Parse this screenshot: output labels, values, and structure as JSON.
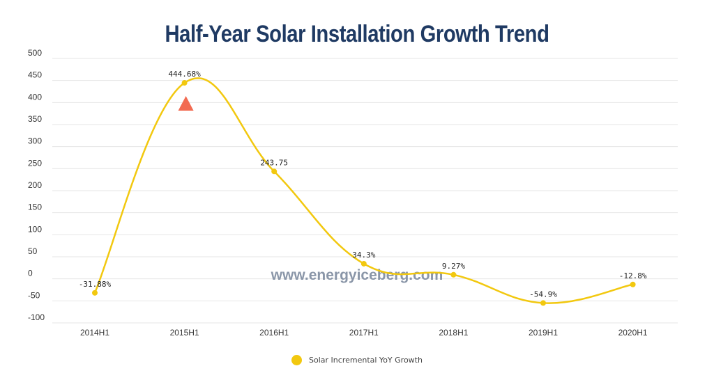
{
  "title": "Half-Year Solar Installation Growth Trend",
  "watermark": "www.energyiceberg.com",
  "colors": {
    "line": "#f2c80f",
    "marker": "#f2c80f",
    "arrow": "#f26b52",
    "title": "#1f3a63",
    "grid": "#e6e6e6"
  },
  "chart_data": {
    "type": "line",
    "title": "Half-Year Solar Installation Growth Trend",
    "categories": [
      "2014H1",
      "2015H1",
      "2016H1",
      "2017H1",
      "2018H1",
      "2019H1",
      "2020H1"
    ],
    "series": [
      {
        "name": "Solar Incremental YoY Growth",
        "values": [
          -31.88,
          444.68,
          243.75,
          34.3,
          9.27,
          -54.9,
          -12.8
        ],
        "labels": [
          "-31.88%",
          "444.68%",
          "243.75",
          "34.3%",
          "9.27%",
          "-54.9%",
          "-12.8%"
        ]
      }
    ],
    "ylim": [
      -100,
      500
    ],
    "yticks": [
      "500",
      "450",
      "400",
      "350",
      "300",
      "250",
      "200",
      "150",
      "100",
      "50",
      "0",
      "-50",
      "-100"
    ],
    "ytick_values": [
      500,
      450,
      400,
      350,
      300,
      250,
      200,
      150,
      100,
      50,
      0,
      -50,
      -100
    ],
    "grid": true,
    "smooth": true,
    "legend": "bottom",
    "annotation": {
      "type": "up-triangle",
      "category": "2015H1"
    }
  }
}
